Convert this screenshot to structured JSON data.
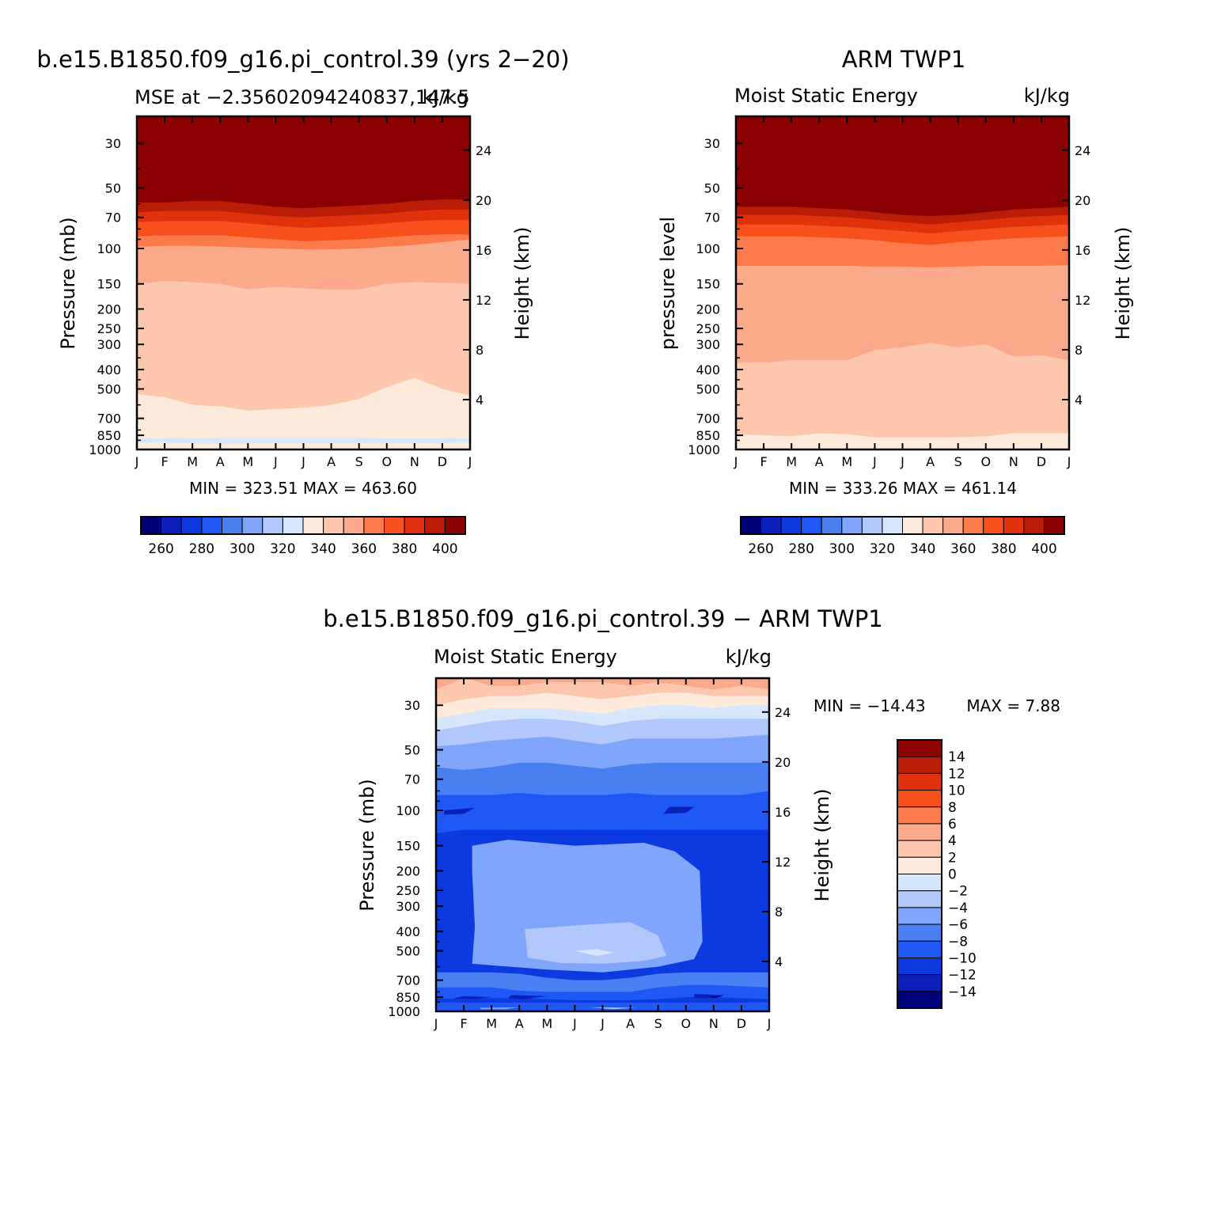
{
  "months": [
    "J",
    "F",
    "M",
    "A",
    "M",
    "J",
    "J",
    "A",
    "S",
    "O",
    "N",
    "D",
    "J"
  ],
  "pressure_ticks": [
    "30",
    "50",
    "70",
    "100",
    "150",
    "200",
    "250",
    "300",
    "400",
    "500",
    "700",
    "850",
    "1000"
  ],
  "height_ticks": [
    "24",
    "20",
    "16",
    "12",
    "8",
    "4"
  ],
  "palette": [
    "#00007a",
    "#0a20b8",
    "#0c39e0",
    "#1f58f5",
    "#4a7ff2",
    "#7fa6fa",
    "#b0c9fa",
    "#d6e7fd",
    "#fdeadb",
    "#fdc7ad",
    "#fba98b",
    "#fc7a4b",
    "#f7501d",
    "#e0320c",
    "#b91d08",
    "#8b0000"
  ],
  "chart_data": [
    {
      "type": "contour",
      "title": "b.e15.B1850.f09_g16.pi_control.39 (yrs 2−20)",
      "left_label": "MSE at −2.35602094240837,147.5",
      "right_label": "kJ/kg",
      "ylabel": "Pressure (mb)",
      "right_axis_label": "Height (km)",
      "stats": "MIN = 323.51  MAX = 463.60",
      "colorbar_labels": [
        "260",
        "280",
        "300",
        "320",
        "340",
        "360",
        "380",
        "400"
      ],
      "levels": [
        250,
        260,
        270,
        280,
        290,
        300,
        310,
        320,
        330,
        340,
        350,
        360,
        370,
        380,
        390,
        400
      ],
      "x": [
        "J",
        "F",
        "M",
        "A",
        "M",
        "J",
        "J",
        "A",
        "S",
        "O",
        "N",
        "D",
        "J"
      ],
      "band_tops_mb": [
        {
          "value": 330,
          "tops": [
            920,
            925,
            930,
            935,
            930,
            930,
            930,
            930,
            930,
            930,
            930,
            930,
            920
          ]
        },
        {
          "value": 320,
          "tops": [
            880,
            880,
            880,
            870,
            870,
            870,
            870,
            870,
            870,
            880,
            880,
            880,
            880
          ]
        },
        {
          "value": 330,
          "tops": [
            530,
            550,
            600,
            610,
            640,
            630,
            620,
            600,
            560,
            490,
            440,
            500,
            540
          ]
        },
        {
          "value": 340,
          "tops": [
            150,
            145,
            147,
            150,
            160,
            155,
            158,
            160,
            160,
            150,
            147,
            148,
            150
          ]
        },
        {
          "value": 350,
          "tops": [
            98,
            97,
            97,
            98,
            99,
            100,
            101,
            101,
            100,
            98,
            96,
            93,
            90
          ]
        },
        {
          "value": 360,
          "tops": [
            87,
            86,
            86,
            86,
            88,
            90,
            92,
            91,
            90,
            88,
            86,
            85,
            85
          ]
        },
        {
          "value": 370,
          "tops": [
            74,
            73,
            73,
            73,
            75,
            77,
            79,
            78,
            77,
            75,
            73,
            72,
            72
          ]
        },
        {
          "value": 380,
          "tops": [
            66,
            65,
            65,
            65,
            67,
            69,
            70,
            69,
            68,
            67,
            65,
            64,
            64
          ]
        },
        {
          "value": 390,
          "tops": [
            59,
            59,
            58,
            58,
            60,
            62,
            63,
            62,
            61,
            60,
            58,
            57,
            57
          ]
        },
        {
          "value": 400,
          "tops": [
            53,
            53,
            52,
            52,
            54,
            56,
            57,
            56,
            55,
            54,
            53,
            52,
            51
          ]
        }
      ]
    },
    {
      "type": "contour",
      "title": "ARM TWP1",
      "left_label": "Moist Static Energy",
      "right_label": "kJ/kg",
      "ylabel": "pressure level",
      "right_axis_label": "Height (km)",
      "stats": "MIN = 333.26  MAX = 461.14",
      "colorbar_labels": [
        "260",
        "280",
        "300",
        "320",
        "340",
        "360",
        "380",
        "400"
      ],
      "levels": [
        250,
        260,
        270,
        280,
        290,
        300,
        310,
        320,
        330,
        340,
        350,
        360,
        370,
        380,
        390,
        400
      ],
      "x": [
        "J",
        "F",
        "M",
        "A",
        "M",
        "J",
        "J",
        "A",
        "S",
        "O",
        "N",
        "D",
        "J"
      ],
      "band_tops_mb": [
        {
          "value": 330,
          "tops": [
            840,
            850,
            860,
            830,
            840,
            870,
            870,
            870,
            870,
            860,
            830,
            830,
            830
          ]
        },
        {
          "value": 340,
          "tops": [
            370,
            370,
            360,
            360,
            360,
            320,
            310,
            295,
            310,
            300,
            345,
            340,
            360
          ]
        },
        {
          "value": 350,
          "tops": [
            122,
            122,
            122,
            122,
            122,
            123,
            123,
            124,
            123,
            122,
            122,
            122,
            121
          ]
        },
        {
          "value": 360,
          "tops": [
            87,
            87,
            87,
            88,
            89,
            91,
            94,
            96,
            93,
            91,
            89,
            88,
            87
          ]
        },
        {
          "value": 370,
          "tops": [
            76,
            76,
            76,
            77,
            78,
            80,
            82,
            84,
            82,
            80,
            78,
            77,
            76
          ]
        },
        {
          "value": 380,
          "tops": [
            68,
            68,
            68,
            69,
            70,
            72,
            74,
            76,
            74,
            72,
            70,
            69,
            68
          ]
        },
        {
          "value": 390,
          "tops": [
            62,
            62,
            62,
            63,
            64,
            66,
            68,
            69,
            68,
            66,
            64,
            63,
            62
          ]
        },
        {
          "value": 400,
          "tops": [
            57,
            57,
            57,
            58,
            59,
            60,
            61,
            62,
            61,
            60,
            59,
            58,
            57
          ]
        }
      ]
    },
    {
      "type": "contour",
      "title": "b.e15.B1850.f09_g16.pi_control.39 − ARM TWP1",
      "left_label": "Moist Static Energy",
      "right_label": "kJ/kg",
      "ylabel": "Pressure (mb)",
      "right_axis_label": "Height (km)",
      "stats_min": "MIN = −14.43",
      "stats_max": "MAX =    7.88",
      "colorbar_labels": [
        "14",
        "12",
        "10",
        "8",
        "6",
        "4",
        "2",
        "0",
        "−2",
        "−4",
        "−6",
        "−8",
        "−10",
        "−12",
        "−14"
      ],
      "levels": [
        -15,
        -14,
        -12,
        -10,
        -8,
        -6,
        -4,
        -2,
        0,
        2,
        4,
        6,
        8,
        10,
        12,
        14
      ],
      "x": [
        "J",
        "F",
        "M",
        "A",
        "M",
        "J",
        "J",
        "A",
        "S",
        "O",
        "N",
        "D",
        "J"
      ],
      "band_tops_mb": [
        {
          "value": -7,
          "tops": [
            990,
            990,
            990,
            990,
            990,
            990,
            990,
            990,
            990,
            990,
            990,
            990,
            990
          ]
        },
        {
          "value": -9,
          "tops": [
            900,
            905,
            905,
            905,
            905,
            905,
            905,
            905,
            905,
            905,
            905,
            905,
            900
          ]
        },
        {
          "value": -11,
          "tops": [
            860,
            870,
            860,
            860,
            870,
            880,
            880,
            880,
            870,
            850,
            850,
            860,
            870
          ]
        },
        {
          "value": -9,
          "tops": [
            760,
            760,
            760,
            790,
            800,
            800,
            800,
            800,
            760,
            740,
            740,
            750,
            760
          ]
        },
        {
          "value": -7,
          "tops": [
            640,
            640,
            640,
            650,
            680,
            700,
            700,
            680,
            650,
            640,
            640,
            640,
            640
          ]
        },
        {
          "value": -11,
          "tops": [
            130,
            125,
            125,
            125,
            125,
            125,
            125,
            125,
            125,
            125,
            125,
            125,
            125
          ]
        },
        {
          "value": -9,
          "tops": [
            84,
            84,
            84,
            82,
            84,
            84,
            84,
            82,
            84,
            84,
            84,
            84,
            80
          ]
        },
        {
          "value": -7,
          "tops": [
            61,
            63,
            61,
            58,
            58,
            60,
            62,
            59,
            58,
            58,
            58,
            58,
            58
          ]
        },
        {
          "value": -5,
          "tops": [
            48,
            47,
            45,
            44,
            43,
            45,
            47,
            44,
            44,
            44,
            44,
            43,
            42
          ]
        },
        {
          "value": -3,
          "tops": [
            40,
            38,
            36,
            35,
            35,
            36,
            38,
            36,
            35,
            35,
            35,
            35,
            35
          ]
        },
        {
          "value": -1,
          "tops": [
            35,
            33,
            31,
            31,
            31,
            32,
            33,
            31,
            30,
            30,
            31,
            30,
            30
          ]
        },
        {
          "value": 1,
          "tops": [
            30,
            28,
            27,
            27,
            26,
            27,
            28,
            27,
            26,
            26,
            27,
            27,
            27
          ]
        },
        {
          "value": 3,
          "tops": [
            25,
            22,
            24,
            24,
            23,
            23,
            23,
            24,
            23,
            24,
            25,
            24,
            25
          ]
        },
        {
          "value": 5,
          "tops": [
            19,
            20,
            21,
            21,
            20,
            20,
            20,
            21,
            20,
            21,
            20,
            20,
            21
          ]
        }
      ],
      "blobs": [
        {
          "value": -5,
          "pts": [
            [
              1.3,
              150
            ],
            [
              2.6,
              140
            ],
            [
              5.0,
              150
            ],
            [
              7.5,
              145
            ],
            [
              8.6,
              160
            ],
            [
              9.5,
              200
            ],
            [
              9.6,
              450
            ],
            [
              9.3,
              550
            ],
            [
              8.0,
              600
            ],
            [
              6.0,
              640
            ],
            [
              4.0,
              620
            ],
            [
              1.3,
              580
            ],
            [
              1.4,
              380
            ],
            [
              1.3,
              200
            ]
          ]
        },
        {
          "value": -3,
          "pts": [
            [
              3.2,
              390
            ],
            [
              5.5,
              370
            ],
            [
              7.0,
              360
            ],
            [
              8.0,
              420
            ],
            [
              8.3,
              530
            ],
            [
              7.5,
              560
            ],
            [
              6.0,
              580
            ],
            [
              4.5,
              575
            ],
            [
              3.3,
              540
            ]
          ]
        },
        {
          "value": -1,
          "pts": [
            [
              5.0,
              500
            ],
            [
              5.8,
              490
            ],
            [
              6.4,
              510
            ],
            [
              5.8,
              530
            ]
          ]
        },
        {
          "value": -13,
          "pts": [
            [
              0.3,
              100
            ],
            [
              1.4,
              97
            ],
            [
              1.0,
              104
            ],
            [
              0.3,
              105
            ]
          ]
        },
        {
          "value": -13,
          "pts": [
            [
              8.4,
              96
            ],
            [
              9.3,
              96
            ],
            [
              9.0,
              103
            ],
            [
              8.2,
              104
            ]
          ]
        },
        {
          "value": -13,
          "pts": [
            [
              1.0,
              840
            ],
            [
              2.0,
              850
            ],
            [
              1.4,
              870
            ],
            [
              0.6,
              865
            ]
          ]
        },
        {
          "value": -13,
          "pts": [
            [
              2.7,
              830
            ],
            [
              4.0,
              840
            ],
            [
              3.2,
              870
            ],
            [
              2.6,
              860
            ]
          ]
        },
        {
          "value": -13,
          "pts": [
            [
              9.3,
              820
            ],
            [
              10.4,
              830
            ],
            [
              10.0,
              860
            ],
            [
              9.3,
              860
            ]
          ]
        },
        {
          "value": -15,
          "pts": [
            [
              9.8,
              840
            ],
            [
              10.3,
              845
            ],
            [
              10.0,
              860
            ]
          ]
        },
        {
          "value": -5,
          "pts": [
            [
              1.6,
              960
            ],
            [
              3.0,
              955
            ],
            [
              2.5,
              975
            ],
            [
              1.6,
              975
            ]
          ]
        },
        {
          "value": -3,
          "pts": [
            [
              5.5,
              955
            ],
            [
              7.2,
              960
            ],
            [
              6.4,
              975
            ]
          ]
        },
        {
          "value": 1,
          "pts": [
            [
              10.7,
              18
            ],
            [
              11.0,
              20
            ],
            [
              11.3,
              18
            ]
          ]
        }
      ]
    }
  ]
}
